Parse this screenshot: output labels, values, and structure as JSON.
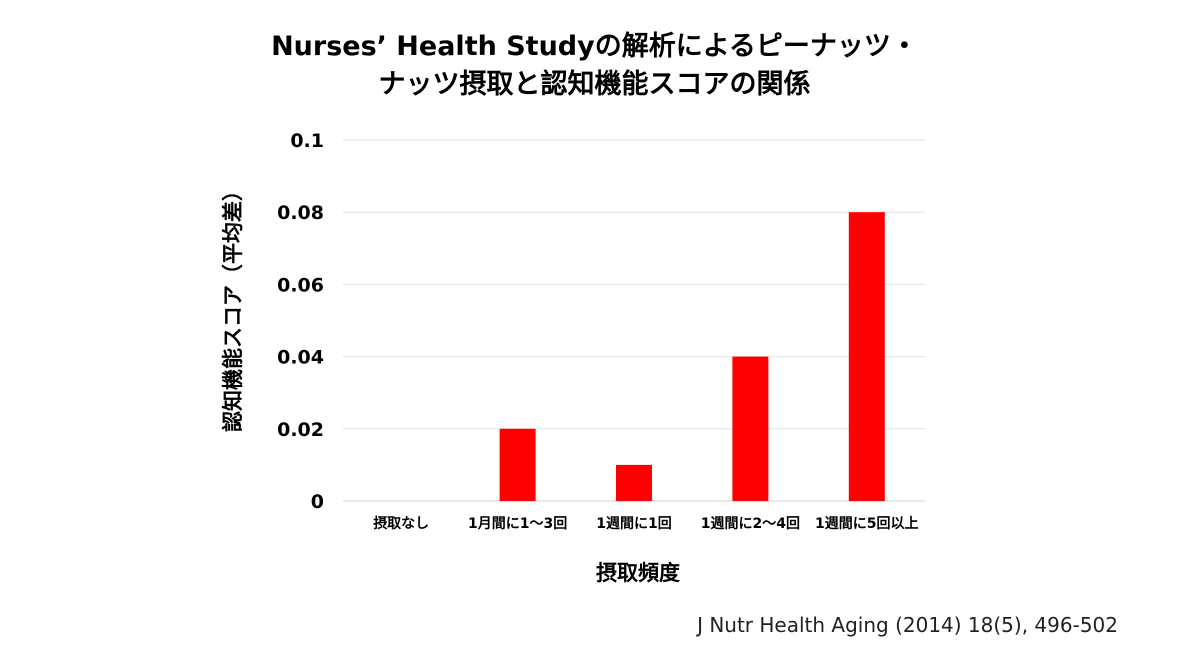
{
  "chart_data": {
    "type": "bar",
    "title_lines": [
      "Nurses’ Health Studyの解析によるピーナッツ・",
      "ナッツ摂取と認知機能スコアの関係"
    ],
    "xlabel": "摂取頻度",
    "ylabel": "認知機能スコア（平均差）",
    "categories": [
      "摂取なし",
      "1月間に1～3回",
      "1週間に1回",
      "1週間に2～4回",
      "1週間に5回以上"
    ],
    "values": [
      0,
      0.02,
      0.01,
      0.04,
      0.08
    ],
    "ylim": [
      0,
      0.1
    ],
    "yticks": [
      "0",
      "0.02",
      "0.04",
      "0.06",
      "0.08",
      "0.1"
    ],
    "ytick_values": [
      0,
      0.02,
      0.04,
      0.06,
      0.08,
      0.1
    ],
    "bar_color": "#ff0000",
    "grid": true,
    "legend": "none"
  },
  "source": "J Nutr Health Aging (2014) 18(5), 496-502"
}
